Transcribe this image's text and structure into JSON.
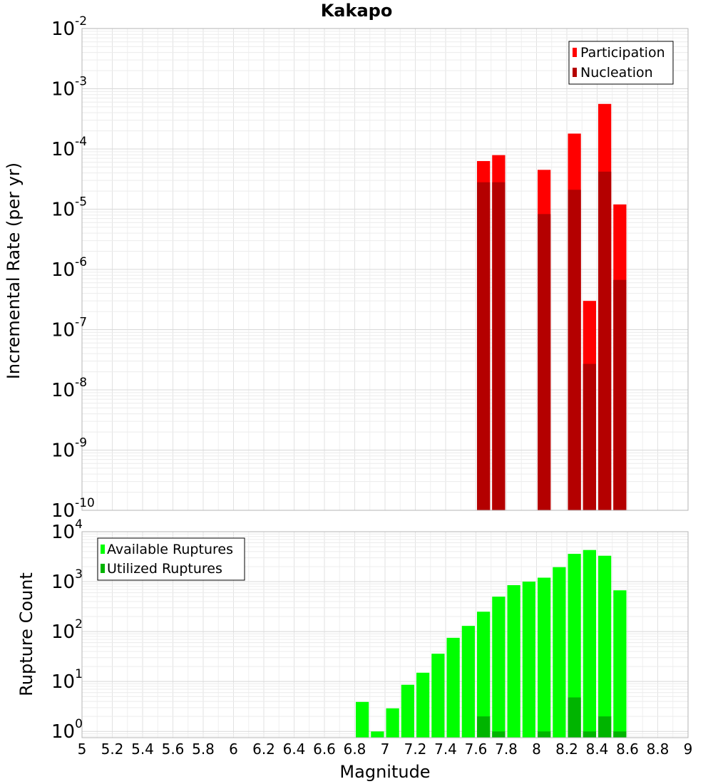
{
  "chart_data": [
    {
      "type": "bar",
      "title": "Kakapo",
      "ylabel": "Incremental Rate (per yr)",
      "yscale": "log",
      "ylim": [
        1e-10,
        0.01
      ],
      "ytick_exponents": [
        -10,
        -9,
        -8,
        -7,
        -6,
        -5,
        -4,
        -3,
        -2
      ],
      "xlim": [
        5,
        9
      ],
      "grid": true,
      "legend_position": "top-right",
      "bin_width": 0.1,
      "series": [
        {
          "name": "Participation",
          "color": "#ff0000",
          "points": [
            {
              "x": 7.65,
              "y": 6.3e-05
            },
            {
              "x": 7.75,
              "y": 7.9e-05
            },
            {
              "x": 8.05,
              "y": 4.5e-05
            },
            {
              "x": 8.25,
              "y": 0.00018
            },
            {
              "x": 8.35,
              "y": 3e-07
            },
            {
              "x": 8.45,
              "y": 0.00056
            },
            {
              "x": 8.55,
              "y": 1.2e-05
            }
          ]
        },
        {
          "name": "Nucleation",
          "color": "#b40000",
          "points": [
            {
              "x": 7.65,
              "y": 2.8e-05
            },
            {
              "x": 7.75,
              "y": 2.8e-05
            },
            {
              "x": 8.05,
              "y": 8.3e-06
            },
            {
              "x": 8.25,
              "y": 2.1e-05
            },
            {
              "x": 8.35,
              "y": 2.7e-08
            },
            {
              "x": 8.45,
              "y": 4.2e-05
            },
            {
              "x": 8.55,
              "y": 6.7e-07
            }
          ]
        }
      ]
    },
    {
      "type": "bar",
      "xlabel": "Magnitude",
      "ylabel": "Rupture Count",
      "yscale": "log",
      "ylim": [
        0.75,
        10000
      ],
      "ytick_exponents": [
        0,
        1,
        2,
        3,
        4
      ],
      "xlim": [
        5,
        9
      ],
      "xticks": [
        "5",
        "5.2",
        "5.4",
        "5.6",
        "5.8",
        "6",
        "6.2",
        "6.4",
        "6.6",
        "6.8",
        "7",
        "7.2",
        "7.4",
        "7.6",
        "7.8",
        "8",
        "8.2",
        "8.4",
        "8.6",
        "8.8",
        "9"
      ],
      "grid": true,
      "legend_position": "top-left",
      "bin_width": 0.1,
      "series": [
        {
          "name": "Available Ruptures",
          "color": "#00ff00",
          "points": [
            {
              "x": 6.85,
              "y": 3.9
            },
            {
              "x": 6.95,
              "y": 1
            },
            {
              "x": 7.05,
              "y": 2.9
            },
            {
              "x": 7.15,
              "y": 8.6
            },
            {
              "x": 7.25,
              "y": 15
            },
            {
              "x": 7.35,
              "y": 36
            },
            {
              "x": 7.45,
              "y": 75
            },
            {
              "x": 7.55,
              "y": 130
            },
            {
              "x": 7.65,
              "y": 250
            },
            {
              "x": 7.75,
              "y": 500
            },
            {
              "x": 7.85,
              "y": 850
            },
            {
              "x": 7.95,
              "y": 1000
            },
            {
              "x": 8.05,
              "y": 1200
            },
            {
              "x": 8.15,
              "y": 1950
            },
            {
              "x": 8.25,
              "y": 3600
            },
            {
              "x": 8.35,
              "y": 4300
            },
            {
              "x": 8.45,
              "y": 3300
            },
            {
              "x": 8.55,
              "y": 670
            }
          ]
        },
        {
          "name": "Utilized Ruptures",
          "color": "#00b400",
          "points": [
            {
              "x": 7.65,
              "y": 2
            },
            {
              "x": 7.75,
              "y": 1
            },
            {
              "x": 8.05,
              "y": 1
            },
            {
              "x": 8.25,
              "y": 4.8
            },
            {
              "x": 8.35,
              "y": 1
            },
            {
              "x": 8.45,
              "y": 2
            },
            {
              "x": 8.55,
              "y": 1
            }
          ]
        }
      ]
    }
  ]
}
